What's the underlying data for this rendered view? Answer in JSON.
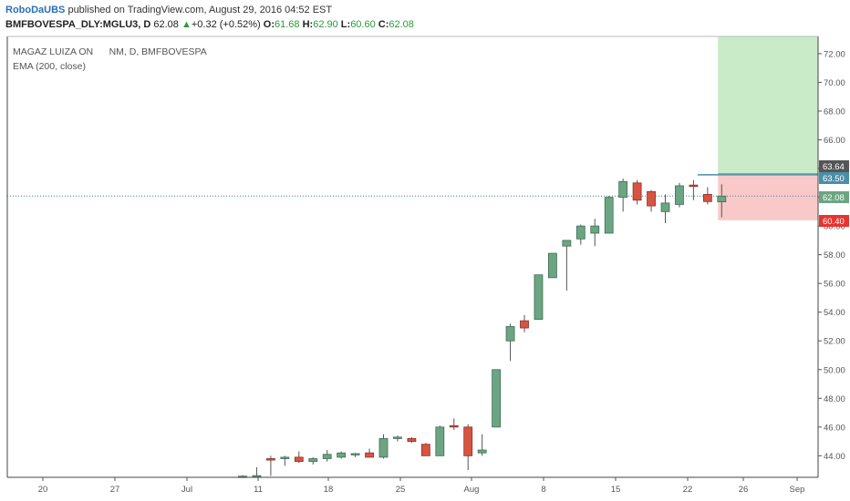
{
  "header": {
    "author": "RoboDaUBS",
    "published": " published on TradingView.com, August 29, 2016 04:52 EST",
    "symbol": "BMFBOVESPA_DLY:MGLU3, D",
    "last": "62.08",
    "up_arrow": "▲",
    "change": "+0.32 (+0.52%)",
    "open_label": "O:",
    "open": "61.68",
    "high_label": "H:",
    "high": "62.90",
    "low_label": "L:",
    "low": "60.60",
    "close_label": "C:",
    "close": "62.08"
  },
  "legend": {
    "line1": "MAGAZ LUIZA ON      NM, D, BMFBOVESPA",
    "line2": "EMA (200, close)"
  },
  "colors": {
    "up": "#6ba583",
    "down": "#d75442",
    "target_zone": "#c9ebc8",
    "stop_zone": "#f9c9c9",
    "entry_line": "#4a8fa8",
    "last_price_line": "#3a7f8c"
  },
  "chart_data": {
    "type": "candlestick",
    "ylim": [
      42.5,
      73.2
    ],
    "y_ticks": [
      "44.00",
      "46.00",
      "48.00",
      "50.00",
      "52.00",
      "54.00",
      "56.00",
      "58.00",
      "60.00",
      "62.00",
      "64.00",
      "66.00",
      "68.00",
      "70.00",
      "72.00"
    ],
    "x_ticks": [
      "20",
      "27",
      "Jul",
      "11",
      "18",
      "25",
      "Aug",
      "8",
      "15",
      "22",
      "26",
      "Sep"
    ],
    "price_labels": [
      {
        "text": "63.64",
        "value": 63.64,
        "color": "#555555"
      },
      {
        "text": "63.50",
        "value": 63.5,
        "color": "#4a8fa8"
      },
      {
        "text": "62.08",
        "value": 62.08,
        "color": "#6ba583"
      },
      {
        "text": "60.40",
        "value": 60.4,
        "color": "#e8332e"
      }
    ],
    "last_price": 62.08,
    "position": {
      "entry": 63.5,
      "stop": 60.4,
      "target": 73.2
    },
    "candles": [
      {
        "o": 42.55,
        "h": 42.65,
        "l": 42.5,
        "c": 42.58
      },
      {
        "o": 42.6,
        "h": 43.2,
        "l": 42.5,
        "c": 42.62
      },
      {
        "o": 43.8,
        "h": 44.0,
        "l": 42.6,
        "c": 43.7
      },
      {
        "o": 43.8,
        "h": 44.0,
        "l": 43.3,
        "c": 43.9
      },
      {
        "o": 43.9,
        "h": 44.3,
        "l": 43.5,
        "c": 43.6
      },
      {
        "o": 43.6,
        "h": 43.9,
        "l": 43.4,
        "c": 43.8
      },
      {
        "o": 43.8,
        "h": 44.4,
        "l": 43.6,
        "c": 44.1
      },
      {
        "o": 43.9,
        "h": 44.3,
        "l": 43.8,
        "c": 44.2
      },
      {
        "o": 44.1,
        "h": 44.2,
        "l": 43.9,
        "c": 44.15
      },
      {
        "o": 44.2,
        "h": 44.5,
        "l": 43.9,
        "c": 43.9
      },
      {
        "o": 43.9,
        "h": 45.5,
        "l": 43.8,
        "c": 45.2
      },
      {
        "o": 45.2,
        "h": 45.4,
        "l": 45.0,
        "c": 45.3
      },
      {
        "o": 45.2,
        "h": 45.3,
        "l": 44.9,
        "c": 45.0
      },
      {
        "o": 44.8,
        "h": 44.9,
        "l": 44.0,
        "c": 44.0
      },
      {
        "o": 44.0,
        "h": 46.1,
        "l": 44.0,
        "c": 46.0
      },
      {
        "o": 46.1,
        "h": 46.6,
        "l": 45.8,
        "c": 46.0
      },
      {
        "o": 46.0,
        "h": 46.2,
        "l": 43.0,
        "c": 44.0
      },
      {
        "o": 44.2,
        "h": 45.5,
        "l": 44.0,
        "c": 44.4
      },
      {
        "o": 46.0,
        "h": 50.0,
        "l": 46.0,
        "c": 50.0
      },
      {
        "o": 52.0,
        "h": 53.2,
        "l": 50.6,
        "c": 53.0
      },
      {
        "o": 53.4,
        "h": 53.8,
        "l": 52.6,
        "c": 52.9
      },
      {
        "o": 53.5,
        "h": 56.6,
        "l": 53.5,
        "c": 56.6
      },
      {
        "o": 56.4,
        "h": 58.1,
        "l": 56.4,
        "c": 58.1
      },
      {
        "o": 58.6,
        "h": 59.0,
        "l": 55.5,
        "c": 59.0
      },
      {
        "o": 59.1,
        "h": 60.1,
        "l": 58.7,
        "c": 60.0
      },
      {
        "o": 59.5,
        "h": 60.5,
        "l": 58.6,
        "c": 60.0
      },
      {
        "o": 59.5,
        "h": 62.1,
        "l": 59.5,
        "c": 62.0
      },
      {
        "o": 62.0,
        "h": 63.3,
        "l": 61.0,
        "c": 63.1
      },
      {
        "o": 63.0,
        "h": 63.2,
        "l": 61.5,
        "c": 61.8
      },
      {
        "o": 62.4,
        "h": 62.5,
        "l": 61.0,
        "c": 61.4
      },
      {
        "o": 61.0,
        "h": 62.2,
        "l": 60.2,
        "c": 61.6
      },
      {
        "o": 61.5,
        "h": 63.0,
        "l": 61.3,
        "c": 62.8
      },
      {
        "o": 62.85,
        "h": 63.2,
        "l": 61.8,
        "c": 62.75
      },
      {
        "o": 62.2,
        "h": 62.7,
        "l": 61.5,
        "c": 61.7
      },
      {
        "o": 61.68,
        "h": 62.9,
        "l": 60.6,
        "c": 62.08
      }
    ]
  }
}
